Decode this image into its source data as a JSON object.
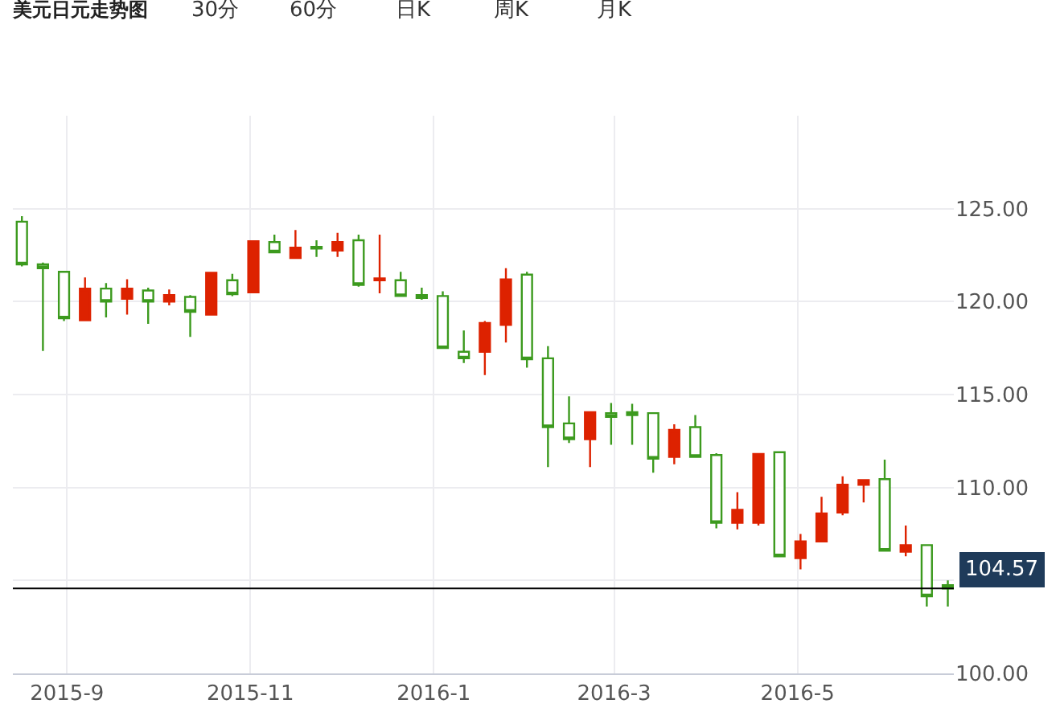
{
  "chart_data": {
    "type": "candlestick",
    "title": "美元日元走势图",
    "annotations": [
      "30分",
      "60分",
      "日K",
      "周K",
      "月K"
    ],
    "x": [
      "2015-08-17",
      "2015-08-24",
      "2015-08-31",
      "2015-09-07",
      "2015-09-14",
      "2015-09-21",
      "2015-09-28",
      "2015-10-05",
      "2015-10-12",
      "2015-10-19",
      "2015-10-26",
      "2015-11-02",
      "2015-11-09",
      "2015-11-16",
      "2015-11-23",
      "2015-11-30",
      "2015-12-07",
      "2015-12-14",
      "2015-12-21",
      "2015-12-28",
      "2016-01-04",
      "2016-01-11",
      "2016-01-18",
      "2016-01-25",
      "2016-02-01",
      "2016-02-08",
      "2016-02-15",
      "2016-02-22",
      "2016-02-29",
      "2016-03-07",
      "2016-03-14",
      "2016-03-21",
      "2016-03-28",
      "2016-04-04",
      "2016-04-11",
      "2016-04-18",
      "2016-04-25",
      "2016-05-02",
      "2016-05-09",
      "2016-05-16",
      "2016-05-23",
      "2016-05-30",
      "2016-06-06",
      "2016-06-13",
      "2016-06-20"
    ],
    "ohlc": [
      [
        124.3,
        124.6,
        121.9,
        122.0
      ],
      [
        122.0,
        122.1,
        117.35,
        121.8
      ],
      [
        121.6,
        121.65,
        118.95,
        119.1
      ],
      [
        119.0,
        121.3,
        118.95,
        120.7
      ],
      [
        120.7,
        121.0,
        119.15,
        120.0
      ],
      [
        120.15,
        121.2,
        119.3,
        120.7
      ],
      [
        120.6,
        120.75,
        118.8,
        120.0
      ],
      [
        120.0,
        120.65,
        119.8,
        120.35
      ],
      [
        120.25,
        120.35,
        118.1,
        119.45
      ],
      [
        119.3,
        121.55,
        119.25,
        121.55
      ],
      [
        121.15,
        121.5,
        120.3,
        120.4
      ],
      [
        120.5,
        123.3,
        120.45,
        123.25
      ],
      [
        123.2,
        123.6,
        122.6,
        122.65
      ],
      [
        122.35,
        123.85,
        122.35,
        122.9
      ],
      [
        122.95,
        123.3,
        122.4,
        122.85
      ],
      [
        122.75,
        123.7,
        122.4,
        123.2
      ],
      [
        123.3,
        123.6,
        120.8,
        120.9
      ],
      [
        121.15,
        123.6,
        120.45,
        121.25
      ],
      [
        121.15,
        121.6,
        120.3,
        120.3
      ],
      [
        120.35,
        120.75,
        120.1,
        120.2
      ],
      [
        120.3,
        120.55,
        117.5,
        117.5
      ],
      [
        117.3,
        118.45,
        116.7,
        116.95
      ],
      [
        117.3,
        118.95,
        116.05,
        118.85
      ],
      [
        118.75,
        121.8,
        117.8,
        121.2
      ],
      [
        121.45,
        121.6,
        116.45,
        116.9
      ],
      [
        116.95,
        117.6,
        111.1,
        113.25
      ],
      [
        113.45,
        114.9,
        112.4,
        112.6
      ],
      [
        112.6,
        114.05,
        111.1,
        114.05
      ],
      [
        114.0,
        114.55,
        112.3,
        113.8
      ],
      [
        114.05,
        114.5,
        112.3,
        113.9
      ],
      [
        114.0,
        114.0,
        110.8,
        111.55
      ],
      [
        111.65,
        113.4,
        111.25,
        113.1
      ],
      [
        113.25,
        113.9,
        111.65,
        111.65
      ],
      [
        111.75,
        111.85,
        107.8,
        108.1
      ],
      [
        108.1,
        109.75,
        107.75,
        108.8
      ],
      [
        108.1,
        111.8,
        107.95,
        111.8
      ],
      [
        111.9,
        111.9,
        106.3,
        106.3
      ],
      [
        106.2,
        107.5,
        105.6,
        107.1
      ],
      [
        107.1,
        109.5,
        107.1,
        108.6
      ],
      [
        108.65,
        110.6,
        108.5,
        110.15
      ],
      [
        110.15,
        110.45,
        109.2,
        110.4
      ],
      [
        110.45,
        111.5,
        106.6,
        106.6
      ],
      [
        106.55,
        107.95,
        106.3,
        106.9
      ],
      [
        106.9,
        106.9,
        103.6,
        104.15
      ],
      [
        104.75,
        105.0,
        103.6,
        104.57
      ]
    ],
    "colors": [
      "#3c9a1e",
      "#3c9a1e",
      "#3c9a1e",
      "#dd2200",
      "#3c9a1e",
      "#dd2200",
      "#3c9a1e",
      "#dd2200",
      "#3c9a1e",
      "#dd2200",
      "#3c9a1e",
      "#dd2200",
      "#3c9a1e",
      "#dd2200",
      "#3c9a1e",
      "#dd2200",
      "#3c9a1e",
      "#dd2200",
      "#3c9a1e",
      "#3c9a1e",
      "#3c9a1e",
      "#3c9a1e",
      "#dd2200",
      "#dd2200",
      "#3c9a1e",
      "#3c9a1e",
      "#3c9a1e",
      "#dd2200",
      "#3c9a1e",
      "#3c9a1e",
      "#3c9a1e",
      "#dd2200",
      "#3c9a1e",
      "#3c9a1e",
      "#dd2200",
      "#dd2200",
      "#3c9a1e",
      "#dd2200",
      "#dd2200",
      "#dd2200",
      "#dd2200",
      "#3c9a1e",
      "#dd2200",
      "#3c9a1e",
      "#3c9a1e"
    ],
    "xlim": [
      "2015-08-14",
      "2016-06-22"
    ],
    "xticks": [
      {
        "value": "2015-09-01",
        "label": "2015-9"
      },
      {
        "value": "2015-11-01",
        "label": "2015-11"
      },
      {
        "value": "2016-01-01",
        "label": "2016-1"
      },
      {
        "value": "2016-03-01",
        "label": "2016-3"
      },
      {
        "value": "2016-05-01",
        "label": "2016-5"
      }
    ],
    "ylim": [
      100,
      130
    ],
    "yticks": [
      {
        "value": 100,
        "label": "100.00"
      },
      {
        "value": 105,
        "label": null
      },
      {
        "value": 110,
        "label": "110.00"
      },
      {
        "value": 115,
        "label": "115.00"
      },
      {
        "value": 120,
        "label": "120.00"
      },
      {
        "value": 125,
        "label": "125.00"
      }
    ],
    "ref_lines": [
      {
        "axis": "y",
        "value": 104.57,
        "label": "104.57",
        "color": "#000000"
      }
    ],
    "grid": true
  }
}
